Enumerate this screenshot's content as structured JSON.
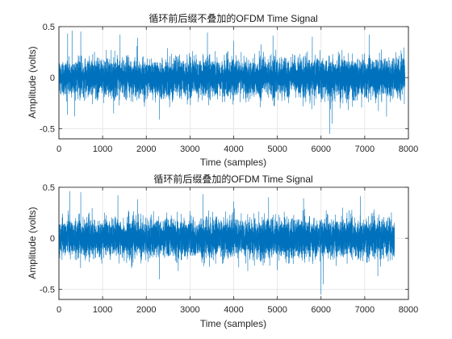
{
  "chart_data": [
    {
      "type": "line",
      "title": "循环前后缀不叠加的OFDM Time Signal",
      "xlabel": "Time (samples)",
      "ylabel": "Amplitude (volts)",
      "xlim": [
        0,
        8000
      ],
      "ylim": [
        -0.6,
        0.5
      ],
      "xticks": [
        0,
        1000,
        2000,
        3000,
        4000,
        5000,
        6000,
        7000,
        8000
      ],
      "yticks": [
        -0.5,
        0,
        0.5
      ],
      "ytick_labels": [
        "-0.5",
        "0",
        "0.5"
      ],
      "grid": true,
      "color": "#0072BD",
      "series": [
        {
          "sample_count": 7920,
          "typical_amplitude": 0.09,
          "peaks": [
            {
              "x": 200,
              "y": 0.43
            },
            {
              "x": 300,
              "y": 0.46
            },
            {
              "x": 500,
              "y": 0.45
            },
            {
              "x": 1400,
              "y": 0.42
            },
            {
              "x": 1800,
              "y": 0.39
            },
            {
              "x": 2300,
              "y": -0.41
            },
            {
              "x": 3400,
              "y": 0.44
            },
            {
              "x": 4000,
              "y": 0.36
            },
            {
              "x": 4900,
              "y": 0.41
            },
            {
              "x": 5800,
              "y": 0.4
            },
            {
              "x": 6200,
              "y": -0.55
            },
            {
              "x": 6250,
              "y": -0.45
            },
            {
              "x": 7100,
              "y": 0.42
            },
            {
              "x": 7500,
              "y": -0.38
            }
          ]
        }
      ]
    },
    {
      "type": "line",
      "title": "循环前后缀叠加的OFDM Time Signal",
      "xlabel": "Time (samples)",
      "ylabel": "Amplitude (volts)",
      "xlim": [
        0,
        8000
      ],
      "ylim": [
        -0.6,
        0.5
      ],
      "xticks": [
        0,
        1000,
        2000,
        3000,
        4000,
        5000,
        6000,
        7000,
        8000
      ],
      "yticks": [
        -0.5,
        0,
        0.5
      ],
      "ytick_labels": [
        "-0.5",
        "0",
        "0.5"
      ],
      "grid": true,
      "color": "#0072BD",
      "series": [
        {
          "sample_count": 7680,
          "typical_amplitude": 0.09,
          "peaks": [
            {
              "x": 250,
              "y": 0.46
            },
            {
              "x": 500,
              "y": 0.45
            },
            {
              "x": 1350,
              "y": 0.42
            },
            {
              "x": 1800,
              "y": 0.38
            },
            {
              "x": 2300,
              "y": -0.4
            },
            {
              "x": 3300,
              "y": 0.43
            },
            {
              "x": 4000,
              "y": 0.36
            },
            {
              "x": 4800,
              "y": 0.4
            },
            {
              "x": 5600,
              "y": 0.39
            },
            {
              "x": 6000,
              "y": -0.55
            },
            {
              "x": 6050,
              "y": -0.45
            },
            {
              "x": 6900,
              "y": 0.41
            },
            {
              "x": 7300,
              "y": -0.37
            }
          ]
        }
      ]
    }
  ]
}
